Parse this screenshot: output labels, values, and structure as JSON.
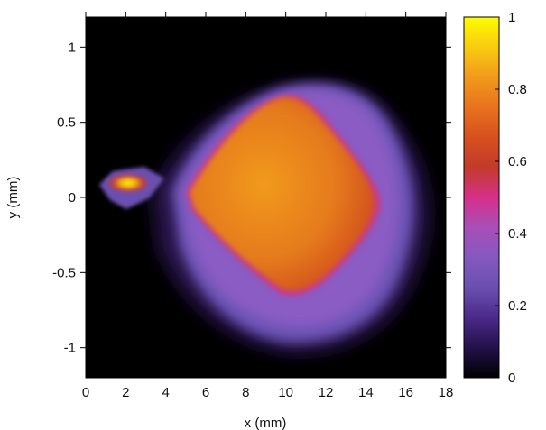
{
  "chart_data": {
    "type": "heatmap",
    "title": "",
    "xlabel": "x (mm)",
    "ylabel": "y (mm)",
    "xlim": [
      0,
      18
    ],
    "ylim": [
      -1.2,
      1.2
    ],
    "xticks": [
      0,
      2,
      4,
      6,
      8,
      10,
      12,
      14,
      16,
      18
    ],
    "yticks": [
      -1,
      -0.5,
      0,
      0.5,
      1
    ],
    "xtick_labels": [
      "0",
      "2",
      "4",
      "6",
      "8",
      "10",
      "12",
      "14",
      "16",
      "18"
    ],
    "ytick_labels": [
      "-1",
      "-0.5",
      "0",
      "0.5",
      "1"
    ],
    "colorbar": {
      "range": [
        0,
        1
      ],
      "ticks": [
        0,
        0.2,
        0.4,
        0.6,
        0.8,
        1
      ],
      "tick_labels": [
        "0",
        "0.2",
        "0.4",
        "0.6",
        "0.8",
        "1"
      ],
      "colormap": [
        "#000000",
        "#24104a",
        "#4a2a8a",
        "#6a4fb0",
        "#8558c0",
        "#a84fb8",
        "#d6308a",
        "#c23a2a",
        "#d8501e",
        "#e8731e",
        "#f19a1a",
        "#f8cc10",
        "#fffc00"
      ]
    },
    "features": [
      {
        "name": "main spot",
        "center": [
          9.8,
          0.03
        ],
        "core_intensity": 0.7,
        "halo_intensity": 0.2
      },
      {
        "name": "small spot",
        "center": [
          2.1,
          0.1
        ],
        "peak_intensity": 1.0
      }
    ]
  }
}
